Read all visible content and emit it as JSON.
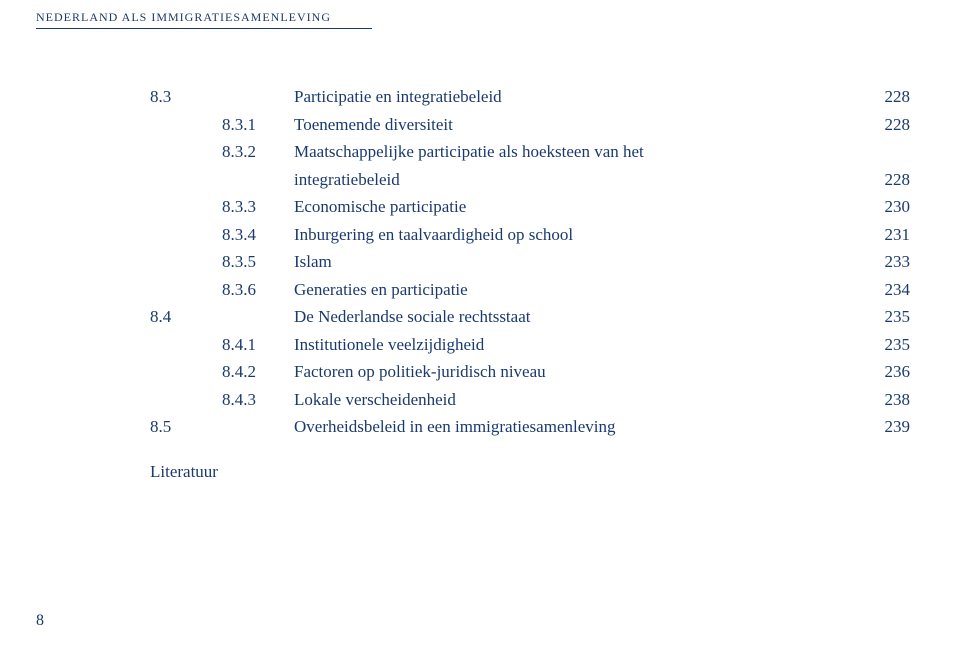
{
  "header": "NEDERLAND ALS IMMIGRATIESAMENLEVING",
  "toc": {
    "rows": [
      {
        "num": "8.3",
        "sub": "",
        "title": "Participatie en integratiebeleid",
        "page": "228",
        "level": 0
      },
      {
        "num": "",
        "sub": "8.3.1",
        "title": "Toenemende diversiteit",
        "page": "228",
        "level": 1
      },
      {
        "num": "",
        "sub": "8.3.2",
        "title": "Maatschappelijke participatie als hoeksteen van het",
        "page": "",
        "level": 1
      },
      {
        "num": "",
        "sub": "",
        "title": "integratiebeleid",
        "page": "228",
        "level": 1
      },
      {
        "num": "",
        "sub": "8.3.3",
        "title": "Economische participatie",
        "page": "230",
        "level": 1
      },
      {
        "num": "",
        "sub": "8.3.4",
        "title": "Inburgering en taalvaardigheid op school",
        "page": "231",
        "level": 1
      },
      {
        "num": "",
        "sub": "8.3.5",
        "title": "Islam",
        "page": "233",
        "level": 1
      },
      {
        "num": "",
        "sub": "8.3.6",
        "title": "Generaties en participatie",
        "page": "234",
        "level": 1
      },
      {
        "num": "8.4",
        "sub": "",
        "title": "De Nederlandse sociale rechtsstaat",
        "page": "235",
        "level": 0
      },
      {
        "num": "",
        "sub": "8.4.1",
        "title": "Institutionele veelzijdigheid",
        "page": "235",
        "level": 1
      },
      {
        "num": "",
        "sub": "8.4.2",
        "title": "Factoren op politiek-juridisch niveau",
        "page": "236",
        "level": 1
      },
      {
        "num": "",
        "sub": "8.4.3",
        "title": "Lokale verscheidenheid",
        "page": "238",
        "level": 1
      },
      {
        "num": "8.5",
        "sub": "",
        "title": "Overheidsbeleid in een immigratiesamenleving",
        "page": "239",
        "level": 0
      }
    ],
    "literatuur": "Literatuur"
  },
  "page_number": "8",
  "colors": {
    "text": "#1a3a6e",
    "background": "#ffffff"
  },
  "fonts": {
    "body_size_pt": 13,
    "header_size_pt": 9
  }
}
